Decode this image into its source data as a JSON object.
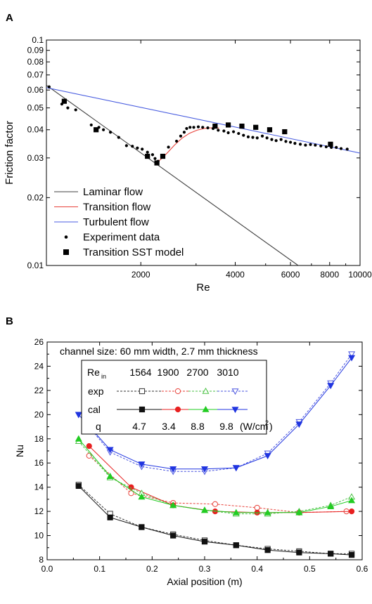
{
  "chart_data": [
    {
      "type": "line",
      "panel_label": "A",
      "xlabel": "Re",
      "ylabel": "Friction factor",
      "xscale": "log",
      "yscale": "log",
      "xlim": [
        1000,
        10000
      ],
      "ylim": [
        0.01,
        0.1
      ],
      "xticks": [
        2000,
        4000,
        6000,
        8000,
        10000
      ],
      "xtick_labels": [
        "2000",
        "4000",
        "6000",
        "8000",
        "10000"
      ],
      "yticks": [
        0.01,
        0.02,
        0.03,
        0.04,
        0.05,
        0.06,
        0.07,
        0.08,
        0.09,
        0.1
      ],
      "ytick_labels": [
        "0.01",
        "0.02",
        "0.03",
        "0.04",
        "0.05",
        "0.06",
        "0.07",
        "0.08",
        "0.09",
        "0.1"
      ],
      "legend_position": "bottom-left",
      "series": [
        {
          "name": "Laminar flow",
          "kind": "line",
          "color": "#404040",
          "x": [
            1000,
            6350
          ],
          "y": [
            0.063,
            0.01
          ]
        },
        {
          "name": "Transition flow",
          "kind": "line",
          "color": "#e8423a",
          "x": [
            2240,
            2330,
            2440,
            2560,
            2700,
            2860,
            3020,
            3180,
            3350,
            3550
          ],
          "y": [
            0.0285,
            0.0298,
            0.0318,
            0.0342,
            0.0366,
            0.0386,
            0.0398,
            0.0405,
            0.0408,
            0.0407
          ]
        },
        {
          "name": "Turbulent flow",
          "kind": "line",
          "color": "#4a5ee0",
          "x": [
            1000,
            10000
          ],
          "y": [
            0.0615,
            0.0315
          ]
        },
        {
          "name": "Experiment data",
          "kind": "scatter",
          "marker": "dot",
          "color": "#000000",
          "x": [
            1020,
            1120,
            1170,
            1240,
            1390,
            1470,
            1520,
            1600,
            1700,
            1800,
            1880,
            1950,
            2020,
            2100,
            2180,
            2220,
            2270,
            2450,
            2600,
            2680,
            2750,
            2800,
            2870,
            2950,
            3050,
            3150,
            3270,
            3400,
            3530,
            3680,
            3800,
            3950,
            4100,
            4250,
            4400,
            4550,
            4700,
            4880,
            5050,
            5230,
            5400,
            5600,
            5800,
            6000,
            6200,
            6450,
            6700,
            6950,
            7200,
            7500,
            7800,
            8100,
            8400,
            8700,
            9100
          ],
          "y": [
            0.062,
            0.052,
            0.05,
            0.049,
            0.042,
            0.041,
            0.04,
            0.039,
            0.037,
            0.034,
            0.0338,
            0.0332,
            0.0328,
            0.0318,
            0.031,
            0.0298,
            0.029,
            0.0335,
            0.0356,
            0.0375,
            0.039,
            0.0405,
            0.041,
            0.041,
            0.0412,
            0.041,
            0.0408,
            0.0405,
            0.0398,
            0.0395,
            0.0388,
            0.0392,
            0.0385,
            0.0378,
            0.0372,
            0.037,
            0.0368,
            0.0375,
            0.0368,
            0.0362,
            0.0358,
            0.0362,
            0.0355,
            0.0352,
            0.0348,
            0.0345,
            0.0342,
            0.0344,
            0.0342,
            0.0339,
            0.0336,
            0.0334,
            0.0334,
            0.033,
            0.0328
          ]
        },
        {
          "name": "Transition SST model",
          "kind": "scatter",
          "marker": "square",
          "color": "#000000",
          "x": [
            1140,
            1440,
            2100,
            2250,
            2350,
            3450,
            3800,
            4200,
            4650,
            5150,
            5750,
            8050
          ],
          "y": [
            0.0535,
            0.04,
            0.0305,
            0.0285,
            0.0305,
            0.0415,
            0.042,
            0.0415,
            0.041,
            0.04,
            0.0392,
            0.0345
          ]
        }
      ]
    },
    {
      "type": "line",
      "panel_label": "B",
      "xlabel": "Axial position (m)",
      "ylabel": "Nu",
      "xlim": [
        0.0,
        0.6
      ],
      "ylim": [
        8,
        26
      ],
      "xticks": [
        0.0,
        0.1,
        0.2,
        0.3,
        0.4,
        0.5,
        0.6
      ],
      "xtick_labels": [
        "0.0",
        "0.1",
        "0.2",
        "0.3",
        "0.4",
        "0.5",
        "0.6"
      ],
      "yticks": [
        8,
        10,
        12,
        14,
        16,
        18,
        20,
        22,
        24,
        26
      ],
      "ytick_labels": [
        "8",
        "10",
        "12",
        "14",
        "16",
        "18",
        "20",
        "22",
        "24",
        "26"
      ],
      "annotation": "channel size: 60 mm width, 2.7 mm thickness",
      "legend_table": {
        "re_label": "Re",
        "re_sub": "in",
        "re_values": [
          "1564",
          "1900",
          "2700",
          "3010"
        ],
        "exp_label": "exp",
        "cal_label": "cal",
        "q_label": "q",
        "q_values": [
          "4.7",
          "3.4",
          "8.8",
          "9.8"
        ],
        "q_unit_prefix": "(W/cm",
        "q_unit_exp": "2",
        "q_unit_suffix": ")"
      },
      "series": [
        {
          "name": "exp 1564",
          "group": "exp",
          "color": "#333333",
          "marker": "square-open",
          "dashed": true,
          "x": [
            0.06,
            0.12,
            0.18,
            0.24,
            0.3,
            0.36,
            0.42,
            0.48,
            0.54,
            0.58
          ],
          "y": [
            14.2,
            11.8,
            10.7,
            10.1,
            9.6,
            9.2,
            8.9,
            8.7,
            8.5,
            8.5
          ]
        },
        {
          "name": "cal 1564",
          "group": "cal",
          "color": "#111111",
          "marker": "square-filled",
          "dashed": false,
          "x": [
            0.06,
            0.12,
            0.18,
            0.24,
            0.3,
            0.36,
            0.42,
            0.48,
            0.54,
            0.58
          ],
          "y": [
            14.1,
            11.5,
            10.7,
            10.0,
            9.5,
            9.2,
            8.8,
            8.6,
            8.5,
            8.4
          ]
        },
        {
          "name": "exp 1900",
          "group": "exp",
          "color": "#e8423a",
          "marker": "circle-open",
          "dashed": true,
          "x": [
            0.08,
            0.16,
            0.24,
            0.32,
            0.4,
            0.48,
            0.57
          ],
          "y": [
            16.6,
            13.5,
            12.7,
            12.6,
            12.3,
            11.9,
            12.0
          ]
        },
        {
          "name": "cal 1900",
          "group": "cal",
          "color": "#e82020",
          "marker": "circle-filled",
          "dashed": false,
          "x": [
            0.08,
            0.16,
            0.24,
            0.32,
            0.4,
            0.48,
            0.58
          ],
          "y": [
            17.4,
            14.0,
            12.5,
            12.0,
            11.9,
            11.9,
            12.0
          ]
        },
        {
          "name": "exp 2700",
          "group": "exp",
          "color": "#4dc247",
          "marker": "triangle-up-open",
          "dashed": true,
          "x": [
            0.06,
            0.12,
            0.18,
            0.24,
            0.3,
            0.36,
            0.42,
            0.48,
            0.54,
            0.58
          ],
          "y": [
            17.8,
            14.8,
            13.5,
            12.5,
            12.1,
            11.8,
            11.8,
            12.0,
            12.5,
            13.2
          ]
        },
        {
          "name": "cal 2700",
          "group": "cal",
          "color": "#22cc22",
          "marker": "triangle-up-filled",
          "dashed": false,
          "x": [
            0.06,
            0.12,
            0.18,
            0.24,
            0.3,
            0.36,
            0.42,
            0.48,
            0.54,
            0.58
          ],
          "y": [
            18.0,
            14.9,
            13.2,
            12.5,
            12.1,
            11.9,
            11.9,
            11.9,
            12.4,
            12.9
          ]
        },
        {
          "name": "exp 3010",
          "group": "exp",
          "color": "#4a55e0",
          "marker": "triangle-down-open",
          "dashed": true,
          "x": [
            0.06,
            0.12,
            0.18,
            0.24,
            0.3,
            0.36,
            0.42,
            0.48,
            0.54,
            0.58
          ],
          "y": [
            20.0,
            16.9,
            15.7,
            15.3,
            15.3,
            15.6,
            16.8,
            19.4,
            22.6,
            25.0
          ]
        },
        {
          "name": "cal 3010",
          "group": "cal",
          "color": "#2035e0",
          "marker": "triangle-down-filled",
          "dashed": false,
          "x": [
            0.06,
            0.12,
            0.18,
            0.24,
            0.3,
            0.36,
            0.42,
            0.48,
            0.54,
            0.58
          ],
          "y": [
            20.0,
            17.1,
            15.9,
            15.5,
            15.5,
            15.6,
            16.6,
            19.2,
            22.4,
            24.7
          ]
        }
      ]
    }
  ]
}
